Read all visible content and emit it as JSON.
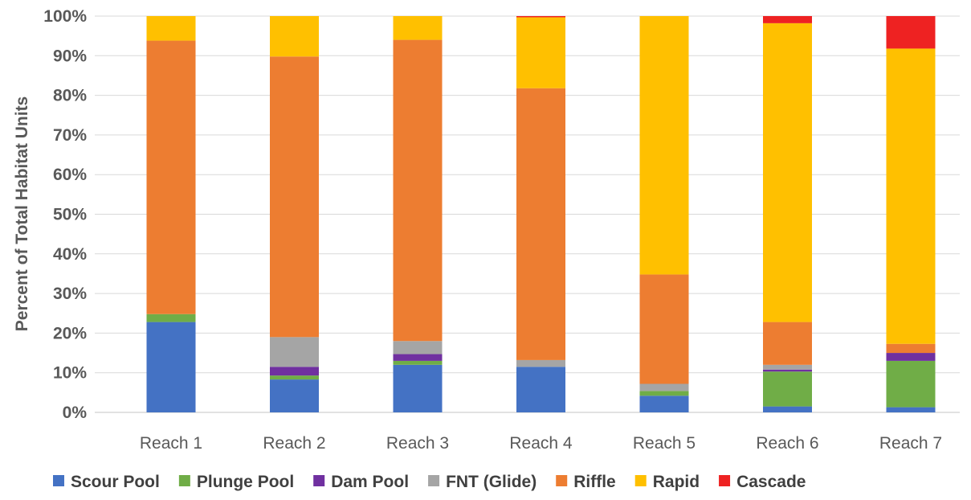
{
  "chart_data": {
    "type": "bar",
    "stacked": true,
    "ylabel": "Percent of Total Habitat Units",
    "ylim": [
      0,
      100
    ],
    "yticks": [
      "0%",
      "10%",
      "20%",
      "30%",
      "40%",
      "50%",
      "60%",
      "70%",
      "80%",
      "90%",
      "100%"
    ],
    "grid": true,
    "legend_position": "bottom",
    "categories": [
      "Reach 1",
      "Reach 2",
      "Reach 3",
      "Reach 4",
      "Reach 5",
      "Reach 6",
      "Reach 7"
    ],
    "series": [
      {
        "name": "Scour Pool",
        "color": "#4472C4",
        "values": [
          22.8,
          8.3,
          12.0,
          11.5,
          4.2,
          1.5,
          1.3
        ]
      },
      {
        "name": "Plunge Pool",
        "color": "#70AD47",
        "values": [
          2.0,
          1.0,
          1.0,
          0.0,
          1.2,
          8.8,
          11.7
        ]
      },
      {
        "name": "Dam Pool",
        "color": "#7030A0",
        "values": [
          0.0,
          2.2,
          1.7,
          0.0,
          0.0,
          0.5,
          2.0
        ]
      },
      {
        "name": "FNT (Glide)",
        "color": "#A5A5A5",
        "values": [
          0.0,
          7.5,
          3.3,
          1.7,
          1.8,
          1.2,
          0.0
        ]
      },
      {
        "name": "Riffle",
        "color": "#ED7D31",
        "values": [
          69.0,
          70.8,
          76.0,
          68.6,
          27.6,
          10.8,
          2.3
        ]
      },
      {
        "name": "Rapid",
        "color": "#FFC000",
        "values": [
          6.2,
          10.2,
          6.0,
          17.9,
          65.2,
          75.4,
          74.5
        ]
      },
      {
        "name": "Cascade",
        "color": "#EE2222",
        "values": [
          0.0,
          0.0,
          0.0,
          0.3,
          0.0,
          1.8,
          8.2
        ]
      }
    ]
  }
}
